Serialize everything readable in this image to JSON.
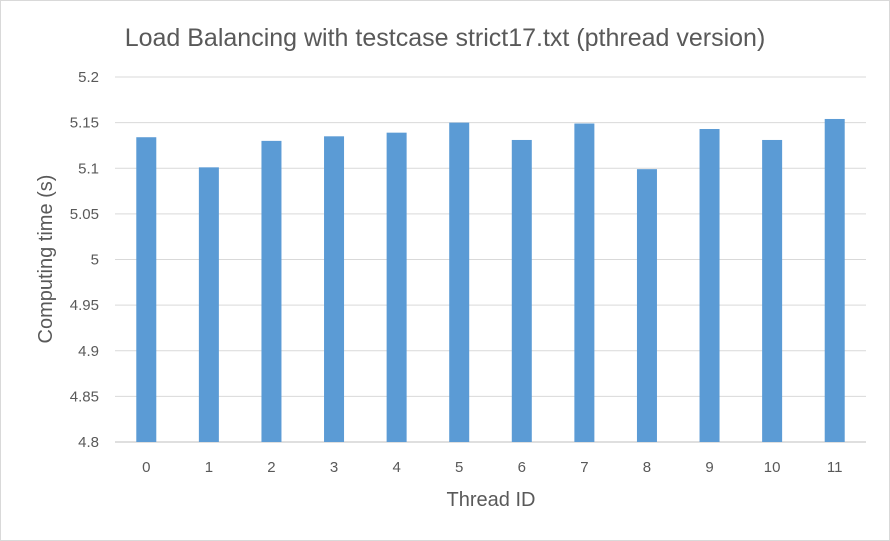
{
  "chart_data": {
    "type": "bar",
    "title": "Load Balancing with testcase strict17.txt (pthread version)",
    "xlabel": "Thread ID",
    "ylabel": "Computing time (s)",
    "categories": [
      "0",
      "1",
      "2",
      "3",
      "4",
      "5",
      "6",
      "7",
      "8",
      "9",
      "10",
      "11"
    ],
    "values": [
      5.134,
      5.101,
      5.13,
      5.135,
      5.139,
      5.15,
      5.131,
      5.149,
      5.099,
      5.143,
      5.131,
      5.154
    ],
    "ylim": [
      4.8,
      5.2
    ],
    "yticks": [
      "4.8",
      "4.85",
      "4.9",
      "4.95",
      "5",
      "5.05",
      "5.1",
      "5.15",
      "5.2"
    ],
    "ytick_values": [
      4.8,
      4.85,
      4.9,
      4.95,
      5.0,
      5.05,
      5.1,
      5.15,
      5.2
    ],
    "bar_color": "#5b9bd5",
    "grid": true,
    "legend": "none"
  }
}
